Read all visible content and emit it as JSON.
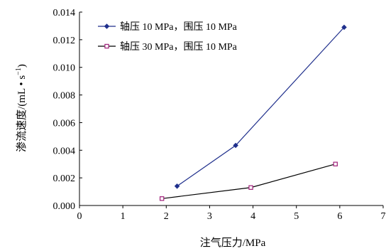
{
  "chart_data": {
    "type": "line",
    "xlabel": "注气压力/MPa",
    "ylabel": "渗流速度/(mL • s",
    "ylabel_sup": "−1",
    "ylabel_close": ")",
    "xlim": [
      0,
      7
    ],
    "ylim": [
      0,
      0.014
    ],
    "x_ticks": [
      "0",
      "1",
      "2",
      "3",
      "4",
      "5",
      "6",
      "7"
    ],
    "y_ticks": [
      "0.000",
      "0.002",
      "0.004",
      "0.006",
      "0.008",
      "0.010",
      "0.012",
      "0.014"
    ],
    "grid": false,
    "legend_position": "top-left",
    "series": [
      {
        "name": "轴压 10 MPa，围压 10 MPa",
        "color": "#1f2f8c",
        "marker": "diamond",
        "x": [
          2.25,
          3.6,
          6.1
        ],
        "y": [
          0.0014,
          0.00435,
          0.0129
        ]
      },
      {
        "name": "轴压 30 MPa，围压 10 MPa",
        "color": "#000000",
        "marker_color": "#a0207a",
        "marker": "square",
        "x": [
          1.9,
          3.95,
          5.9
        ],
        "y": [
          0.0005,
          0.0013,
          0.003
        ]
      }
    ]
  }
}
